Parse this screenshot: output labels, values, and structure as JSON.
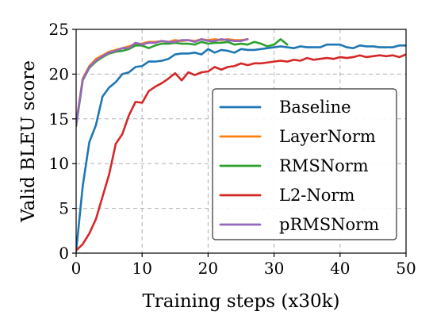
{
  "chart_data": {
    "type": "line",
    "title": "",
    "xlabel": "Training steps (x30k)",
    "ylabel": "Valid BLEU score",
    "xlim": [
      0,
      50
    ],
    "ylim": [
      0,
      25
    ],
    "xticks": [
      0,
      10,
      20,
      30,
      40,
      50
    ],
    "yticks": [
      0,
      5,
      10,
      15,
      20,
      25
    ],
    "xtick_labels": [
      "0",
      "10",
      "20",
      "30",
      "40",
      "50"
    ],
    "ytick_labels": [
      "0",
      "5",
      "10",
      "15",
      "20",
      "25"
    ],
    "grid": true,
    "legend_position": "center-right",
    "series": [
      {
        "name": "Baseline",
        "color": "#1f77b4",
        "x": [
          0,
          1,
          2,
          3,
          4,
          5,
          6,
          7,
          8,
          9,
          10,
          11,
          12,
          13,
          14,
          15,
          16,
          17,
          18,
          19,
          20,
          21,
          22,
          23,
          24,
          25,
          26,
          27,
          28,
          29,
          30,
          31,
          32,
          33,
          34,
          35,
          36,
          37,
          38,
          39,
          40,
          41,
          42,
          43,
          44,
          45,
          46,
          47,
          48,
          49,
          50
        ],
        "y": [
          0.2,
          7.5,
          12.4,
          14.3,
          17.5,
          18.5,
          19.1,
          20.0,
          20.2,
          20.8,
          20.9,
          21.4,
          21.4,
          21.5,
          21.7,
          22.2,
          22.3,
          22.3,
          22.4,
          22.2,
          22.8,
          22.4,
          22.7,
          22.6,
          22.4,
          22.8,
          22.7,
          22.7,
          22.8,
          22.9,
          23.0,
          23.1,
          23.0,
          22.9,
          23.1,
          23.0,
          23.0,
          23.0,
          23.3,
          23.3,
          23.3,
          23.0,
          22.9,
          23.2,
          23.1,
          23.1,
          23.0,
          23.0,
          23.0,
          23.2,
          23.2
        ]
      },
      {
        "name": "LayerNorm",
        "color": "#ff7f0e",
        "x": [
          0,
          1,
          2,
          3,
          4,
          5,
          6,
          7,
          8,
          9,
          10,
          11,
          12,
          13,
          14,
          15,
          16,
          17,
          18,
          19,
          20,
          21,
          22,
          23,
          24,
          25,
          26
        ],
        "y": [
          14.5,
          19.5,
          20.9,
          21.7,
          22.1,
          22.5,
          22.7,
          22.9,
          23.1,
          23.4,
          23.4,
          23.6,
          23.6,
          23.7,
          23.6,
          23.8,
          23.7,
          23.8,
          23.7,
          23.9,
          23.8,
          23.9,
          23.8,
          23.9,
          23.8,
          23.8,
          23.9
        ]
      },
      {
        "name": "RMSNorm",
        "color": "#2ca02c",
        "x": [
          0,
          1,
          2,
          3,
          4,
          5,
          6,
          7,
          8,
          9,
          10,
          11,
          12,
          13,
          14,
          15,
          16,
          17,
          18,
          19,
          20,
          21,
          22,
          23,
          24,
          25,
          26,
          27,
          28,
          29,
          30,
          31,
          32
        ],
        "y": [
          14.2,
          19.3,
          20.7,
          21.4,
          21.9,
          22.3,
          22.5,
          22.6,
          22.8,
          23.2,
          23.2,
          22.9,
          23.2,
          23.4,
          23.4,
          23.5,
          23.4,
          23.4,
          23.3,
          23.6,
          23.4,
          23.5,
          23.5,
          23.6,
          23.3,
          23.4,
          23.3,
          23.6,
          23.4,
          23.1,
          23.3,
          23.9,
          23.3
        ]
      },
      {
        "name": "L2-Norm",
        "color": "#d62728",
        "x": [
          0,
          1,
          2,
          3,
          4,
          5,
          6,
          7,
          8,
          9,
          10,
          11,
          12,
          13,
          14,
          15,
          16,
          17,
          18,
          19,
          20,
          21,
          22,
          23,
          24,
          25,
          26,
          27,
          28,
          29,
          30,
          31,
          32,
          33,
          34,
          35,
          36,
          37,
          38,
          39,
          40,
          41,
          42,
          43,
          44,
          45,
          46,
          47,
          48,
          49,
          50
        ],
        "y": [
          0.3,
          1.0,
          2.2,
          3.8,
          6.3,
          8.8,
          12.2,
          13.3,
          15.4,
          16.9,
          16.8,
          18.1,
          18.6,
          19.0,
          19.5,
          20.1,
          19.3,
          20.2,
          19.9,
          20.2,
          20.3,
          20.8,
          20.5,
          20.8,
          20.9,
          21.2,
          21.0,
          21.2,
          21.2,
          21.3,
          21.4,
          21.5,
          21.4,
          21.6,
          21.5,
          21.8,
          21.6,
          21.7,
          21.8,
          21.7,
          21.9,
          21.8,
          21.9,
          22.1,
          21.9,
          22.0,
          22.1,
          22.0,
          22.1,
          21.9,
          22.2
        ]
      },
      {
        "name": "pRMSNorm",
        "color": "#9467bd",
        "x": [
          0,
          1,
          2,
          3,
          4,
          5,
          6,
          7,
          8,
          9,
          10,
          11,
          12,
          13,
          14,
          15,
          16,
          17,
          18,
          19,
          20,
          21,
          22,
          23,
          24,
          25,
          26
        ],
        "y": [
          14.4,
          19.4,
          20.8,
          21.5,
          22.0,
          22.4,
          22.6,
          22.9,
          22.9,
          23.5,
          23.3,
          23.5,
          23.5,
          23.7,
          23.6,
          23.6,
          23.8,
          23.8,
          23.6,
          23.9,
          23.7,
          23.7,
          23.9,
          23.8,
          23.7,
          23.7,
          23.9
        ]
      }
    ]
  }
}
